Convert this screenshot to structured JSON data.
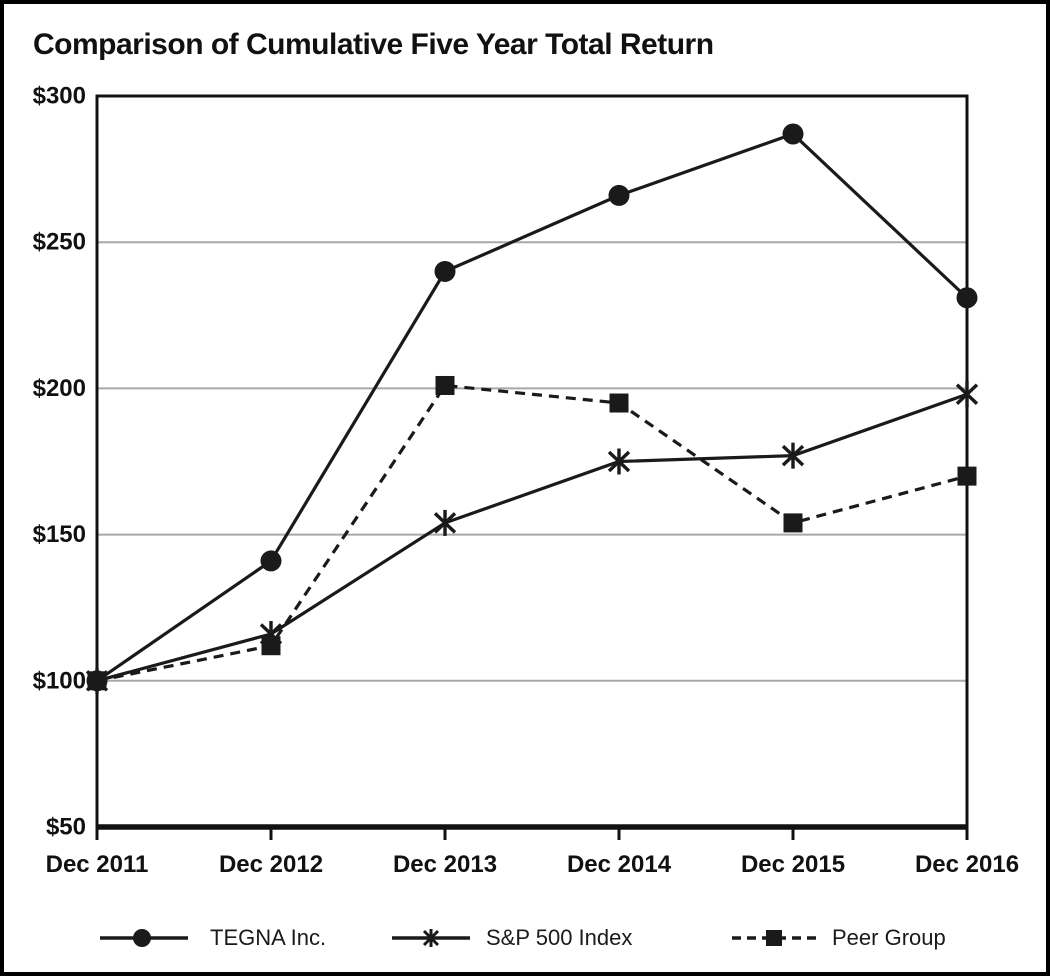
{
  "chart_data": {
    "type": "line",
    "title": "Comparison of Cumulative Five Year Total Return",
    "categories": [
      "Dec 2011",
      "Dec 2012",
      "Dec 2013",
      "Dec 2014",
      "Dec 2015",
      "Dec 2016"
    ],
    "series": [
      {
        "name": "TEGNA Inc.",
        "marker": "circle",
        "line_style": "solid",
        "values": [
          100,
          141,
          240,
          266,
          287,
          231
        ]
      },
      {
        "name": "S&P 500 Index",
        "marker": "asterisk",
        "line_style": "solid",
        "values": [
          100,
          116,
          154,
          175,
          177,
          198
        ]
      },
      {
        "name": "Peer Group",
        "marker": "square",
        "line_style": "dashed",
        "values": [
          100,
          112,
          201,
          195,
          154,
          170
        ]
      }
    ],
    "xlabel": "",
    "ylabel": "",
    "ylim": [
      50,
      300
    ],
    "ytick_step": 50,
    "ytick_labels": [
      "$50",
      "$100",
      "$150",
      "$200",
      "$250",
      "$300"
    ],
    "grid_values": [
      100,
      150,
      200,
      250
    ],
    "grid_on": true,
    "legend_position": "bottom",
    "colors": {
      "series": "#1a1a1a",
      "grid": "#a8a8a8",
      "axis": "#111111",
      "background": "#ffffff",
      "figure_border": "#000000"
    }
  }
}
